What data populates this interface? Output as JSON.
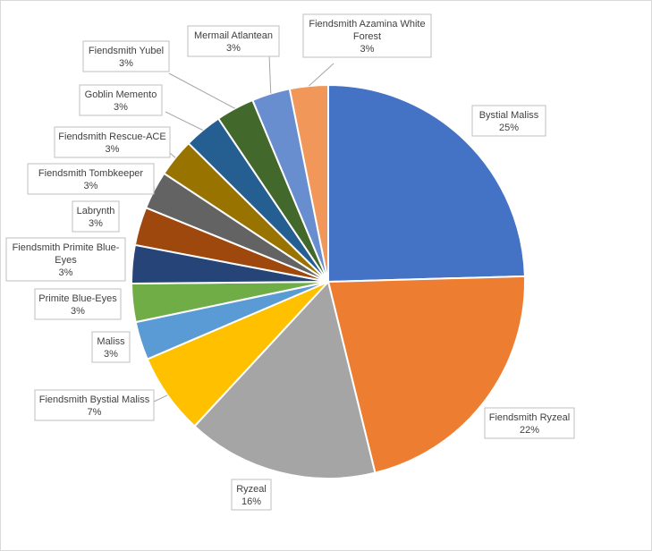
{
  "chart_data": {
    "type": "pie",
    "title": "",
    "start_angle_deg": 0,
    "direction": "clockwise",
    "slices": [
      {
        "name": "Bystial Maliss",
        "label_lines": [
          "Bystial Maliss"
        ],
        "percent_label": "25%",
        "value": 25,
        "color": "#4472c4"
      },
      {
        "name": "Fiendsmith Ryzeal",
        "label_lines": [
          "Fiendsmith Ryzeal"
        ],
        "percent_label": "22%",
        "value": 22,
        "color": "#ed7d31"
      },
      {
        "name": "Ryzeal",
        "label_lines": [
          "Ryzeal"
        ],
        "percent_label": "16%",
        "value": 16,
        "color": "#a5a5a5"
      },
      {
        "name": "Fiendsmith Bystial Maliss",
        "label_lines": [
          "Fiendsmith Bystial Maliss"
        ],
        "percent_label": "7%",
        "value": 6.8,
        "color": "#ffc000"
      },
      {
        "name": "Maliss",
        "label_lines": [
          "Maliss"
        ],
        "percent_label": "3%",
        "value": 3.2,
        "color": "#5b9bd5"
      },
      {
        "name": "Primite Blue-Eyes",
        "label_lines": [
          "Primite Blue-Eyes"
        ],
        "percent_label": "3%",
        "value": 3.2,
        "color": "#70ad47"
      },
      {
        "name": "Fiendsmith Primite Blue-Eyes",
        "label_lines": [
          "Fiendsmith Primite Blue-",
          "Eyes"
        ],
        "percent_label": "3%",
        "value": 3.2,
        "color": "#264478"
      },
      {
        "name": "Labrynth",
        "label_lines": [
          "Labrynth"
        ],
        "percent_label": "3%",
        "value": 3.2,
        "color": "#9e480e"
      },
      {
        "name": "Fiendsmith Tombkeeper",
        "label_lines": [
          "Fiendsmith Tombkeeper"
        ],
        "percent_label": "3%",
        "value": 3.2,
        "color": "#636363"
      },
      {
        "name": "Fiendsmith Rescue-ACE",
        "label_lines": [
          "Fiendsmith Rescue-ACE"
        ],
        "percent_label": "3%",
        "value": 3.2,
        "color": "#997300"
      },
      {
        "name": "Goblin Memento",
        "label_lines": [
          "Goblin Memento"
        ],
        "percent_label": "3%",
        "value": 3.2,
        "color": "#255e91"
      },
      {
        "name": "Fiendsmith Yubel",
        "label_lines": [
          "Fiendsmith Yubel"
        ],
        "percent_label": "3%",
        "value": 3.2,
        "color": "#43682b"
      },
      {
        "name": "Mermail Atlantean",
        "label_lines": [
          "Mermail Atlantean"
        ],
        "percent_label": "3%",
        "value": 3.2,
        "color": "#698ed0"
      },
      {
        "name": "Fiendsmith Azamina White Forest",
        "label_lines": [
          "Fiendsmith Azamina White",
          "Forest"
        ],
        "percent_label": "3%",
        "value": 3.2,
        "color": "#f1975a"
      }
    ]
  }
}
